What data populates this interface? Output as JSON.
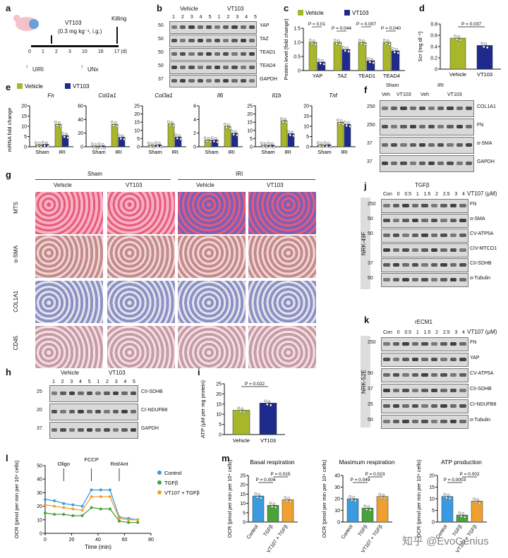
{
  "panels": {
    "a": {
      "label": "a",
      "drug": "VT103",
      "dose": "(0.3 mg kg⁻¹, i.g.)",
      "killing": "Killing",
      "days": [
        "0",
        "1",
        "2",
        "3",
        "10",
        "16",
        "17 (d)"
      ],
      "uiri": "UIRI",
      "unx": "UNx"
    },
    "b": {
      "label": "b",
      "vehicle": "Vehicle",
      "vt103": "VT103",
      "lanes": [
        "1",
        "2",
        "3",
        "4",
        "5",
        "1",
        "2",
        "3",
        "4",
        "5"
      ],
      "mw": [
        "50",
        "50",
        "50",
        "50",
        "37"
      ],
      "proteins": [
        "YAP",
        "TAZ",
        "TEAD1",
        "TEAD4",
        "GAPDH"
      ]
    },
    "c": {
      "label": "c",
      "legend": [
        "Vehicle",
        "VT103"
      ],
      "ylabel": "Protein level (fold change)",
      "pvals": [
        "P = 0.01",
        "P = 0.044",
        "P = 0.007",
        "P = 0.040"
      ]
    },
    "d": {
      "label": "d",
      "ylabel": "Scr (mg dl⁻¹)",
      "pval": "P = 0.037"
    },
    "e": {
      "label": "e",
      "legend": [
        "Vehicle",
        "VT103"
      ],
      "ylabel": "mRNA fold change",
      "genes": [
        "Fn",
        "Col1a1",
        "Col3a1",
        "Il6",
        "Il1b",
        "Tnf"
      ],
      "xcats": [
        "Sham",
        "IRI"
      ]
    },
    "f": {
      "label": "f",
      "sham": "Sham",
      "iri": "IRI",
      "veh": "Veh",
      "vt103": "VT103",
      "mw": [
        "250",
        "250",
        "37",
        "37"
      ],
      "proteins": [
        "COL1A1",
        "FN",
        "α-SMA",
        "GAPDH"
      ]
    },
    "g": {
      "label": "g",
      "sham": "Sham",
      "iri": "IRI",
      "cols": [
        "Vehicle",
        "VT103",
        "Vehicle",
        "VT103"
      ],
      "rows": [
        "MTS",
        "α-SMA",
        "COL1A1",
        "CD45"
      ]
    },
    "h": {
      "label": "h",
      "vehicle": "Vehicle",
      "vt103": "VT103",
      "lanes": [
        "1",
        "2",
        "3",
        "4",
        "5",
        "1",
        "2",
        "3",
        "4",
        "5"
      ],
      "mw": [
        "25",
        "20",
        "37"
      ],
      "proteins": [
        "CII-SDHB",
        "CI-NDUFB8",
        "GAPDH"
      ]
    },
    "i": {
      "label": "i",
      "ylabel": "ATP (μM per mg protein)",
      "pval": "P = 0.022",
      "cats": [
        "Vehicle",
        "VT103"
      ]
    },
    "j": {
      "label": "j",
      "cell": "NRK-49F",
      "treat": "TGFβ",
      "drug": "VT107 (μM)",
      "conc": [
        "Con",
        "0",
        "0.5",
        "1",
        "1.5",
        "2",
        "2.5",
        "3",
        "4"
      ],
      "mw": [
        "250",
        "50",
        "50",
        "37",
        "50"
      ],
      "proteins": [
        "FN",
        "α-SMA",
        "CV-ATP5A",
        "CIV-MTCO1",
        "CII-SDHB",
        "α-Tubulin"
      ]
    },
    "k": {
      "label": "k",
      "cell": "NRK-52E",
      "treat": "rECM1",
      "drug": "VT107 (μM)",
      "conc": [
        "Con",
        "0",
        "0.5",
        "1",
        "1.5",
        "2",
        "2.5",
        "3",
        "4"
      ],
      "mw": [
        "250",
        "50",
        "37",
        "25",
        "50"
      ],
      "proteins": [
        "FN",
        "YAP",
        "CV-ATP5A",
        "CII-SDHB",
        "CI-NDUFB8",
        "α-Tubulin"
      ]
    },
    "l": {
      "label": "l",
      "ylabel": "OCR (pmol per min per 10⁴ cells)",
      "xlabel": "Time (min)",
      "injections": [
        "Oligo",
        "FCCP",
        "Rot/Ant"
      ],
      "legend": [
        "Control",
        "TGFβ",
        "VT107 + TGFβ"
      ]
    },
    "m": {
      "label": "m",
      "titles": [
        "Basal respiration",
        "Maximum respiration",
        "ATP production"
      ],
      "ylabel": "OCR (pmol per min per 10⁴ cells)",
      "cats": [
        "Control",
        "TGFβ",
        "VT107 + TGFβ"
      ],
      "pvals": [
        [
          "P = 0.004",
          "P = 0.015"
        ],
        [
          "P = 0.049",
          "P = 0.023"
        ],
        [
          "P = 0.0003",
          "P = 0.002"
        ]
      ]
    }
  },
  "watermark": "知乎 @EvoGenius",
  "colors": {
    "vehicle": "#a8b62a",
    "vt103": "#1e2a8c",
    "control": "#3a9be0",
    "tgfb": "#4aa33a",
    "vt107": "#f0a030",
    "atp": "#e8b420"
  },
  "chart_data": [
    {
      "type": "bar",
      "panel": "c",
      "categories": [
        "YAP",
        "TAZ",
        "TEAD1",
        "TEAD4"
      ],
      "series": [
        {
          "name": "Vehicle",
          "values": [
            1.0,
            1.0,
            1.0,
            1.0
          ]
        },
        {
          "name": "VT103",
          "values": [
            0.3,
            0.75,
            0.35,
            0.7
          ]
        }
      ],
      "ylabel": "Protein level (fold change)",
      "ylim": [
        0,
        1.5
      ],
      "yticks": [
        "0",
        "0.5",
        "1.0",
        "1.5"
      ]
    },
    {
      "type": "bar",
      "panel": "d",
      "categories": [
        "Vehicle",
        "VT103"
      ],
      "values": [
        0.55,
        0.42
      ],
      "ylabel": "Scr (mg dl⁻¹)",
      "ylim": [
        0,
        0.8
      ],
      "yticks": [
        "0",
        "0.2",
        "0.4",
        "0.6",
        "0.8"
      ]
    },
    {
      "type": "bar",
      "panel": "e",
      "title": "Fn",
      "categories": [
        "Sham",
        "IRI"
      ],
      "series": [
        {
          "name": "Vehicle",
          "values": [
            1,
            11
          ]
        },
        {
          "name": "VT103",
          "values": [
            1.2,
            5.5
          ]
        }
      ],
      "ylim": [
        0,
        20
      ],
      "yticks": [
        "0",
        "5",
        "10",
        "15",
        "20"
      ]
    },
    {
      "type": "bar",
      "panel": "e",
      "title": "Col1a1",
      "categories": [
        "Sham",
        "IRI"
      ],
      "series": [
        {
          "name": "Vehicle",
          "values": [
            1,
            33
          ]
        },
        {
          "name": "VT103",
          "values": [
            1.2,
            14
          ]
        }
      ],
      "ylim": [
        0,
        60
      ],
      "yticks": [
        "0",
        "20",
        "40",
        "60"
      ]
    },
    {
      "type": "bar",
      "panel": "e",
      "title": "Col3a1",
      "categories": [
        "Sham",
        "IRI"
      ],
      "series": [
        {
          "name": "Vehicle",
          "values": [
            1,
            14
          ]
        },
        {
          "name": "VT103",
          "values": [
            1.2,
            6
          ]
        }
      ],
      "ylim": [
        0,
        25
      ],
      "yticks": [
        "0",
        "5",
        "10",
        "15",
        "20",
        "25"
      ]
    },
    {
      "type": "bar",
      "panel": "e",
      "title": "Il6",
      "categories": [
        "Sham",
        "IRI"
      ],
      "series": [
        {
          "name": "Vehicle",
          "values": [
            1,
            3
          ]
        },
        {
          "name": "VT103",
          "values": [
            1,
            2
          ]
        }
      ],
      "ylim": [
        0,
        6
      ],
      "yticks": [
        "0",
        "2",
        "4",
        "6"
      ]
    },
    {
      "type": "bar",
      "panel": "e",
      "title": "Il1b",
      "categories": [
        "Sham",
        "IRI"
      ],
      "series": [
        {
          "name": "Vehicle",
          "values": [
            1,
            16
          ]
        },
        {
          "name": "VT103",
          "values": [
            1,
            8
          ]
        }
      ],
      "ylim": [
        0,
        25
      ],
      "yticks": [
        "0",
        "5",
        "10",
        "15",
        "20",
        "25"
      ]
    },
    {
      "type": "bar",
      "panel": "e",
      "title": "Tnf",
      "categories": [
        "Sham",
        "IRI"
      ],
      "series": [
        {
          "name": "Vehicle",
          "values": [
            1,
            12
          ]
        },
        {
          "name": "VT103",
          "values": [
            1,
            11
          ]
        }
      ],
      "ylim": [
        0,
        20
      ],
      "yticks": [
        "0",
        "5",
        "10",
        "15",
        "20"
      ]
    },
    {
      "type": "bar",
      "panel": "i",
      "categories": [
        "Vehicle",
        "VT103"
      ],
      "values": [
        12,
        15.5
      ],
      "ylabel": "ATP (μM per mg protein)",
      "ylim": [
        0,
        25
      ],
      "yticks": [
        "0",
        "5",
        "10",
        "15",
        "20",
        "25"
      ]
    },
    {
      "type": "line",
      "panel": "l",
      "x": [
        0,
        7,
        14,
        21,
        28,
        35,
        42,
        49,
        56,
        63,
        70
      ],
      "series": [
        {
          "name": "Control",
          "values": [
            25,
            24,
            22,
            21,
            20,
            32,
            32,
            32,
            12,
            11,
            10
          ]
        },
        {
          "name": "TGFβ",
          "values": [
            15,
            14,
            14,
            13,
            13,
            19,
            18,
            18,
            9,
            8,
            8
          ]
        },
        {
          "name": "VT107 + TGFβ",
          "values": [
            21,
            20,
            19,
            18,
            17,
            27,
            27,
            27,
            11,
            10,
            10
          ]
        }
      ],
      "xlabel": "Time (min)",
      "ylim": [
        0,
        50
      ],
      "xlim": [
        0,
        80
      ],
      "yticks": [
        "0",
        "10",
        "20",
        "30",
        "40",
        "50"
      ],
      "xticks": [
        "0",
        "20",
        "40",
        "60",
        "80"
      ]
    },
    {
      "type": "bar",
      "panel": "m",
      "title": "Basal respiration",
      "categories": [
        "Control",
        "TGFβ",
        "VT107 + TGFβ"
      ],
      "values": [
        14,
        9,
        12
      ],
      "ylim": [
        0,
        25
      ],
      "yticks": [
        "0",
        "5",
        "10",
        "15",
        "20",
        "25"
      ]
    },
    {
      "type": "bar",
      "panel": "m",
      "title": "Maximum respiration",
      "categories": [
        "Control",
        "TGFβ",
        "VT107 + TGFβ"
      ],
      "values": [
        20,
        12,
        22
      ],
      "ylim": [
        0,
        40
      ],
      "yticks": [
        "0",
        "10",
        "20",
        "30",
        "40"
      ]
    },
    {
      "type": "bar",
      "panel": "m",
      "title": "ATP production",
      "categories": [
        "Control",
        "TGFβ",
        "VT107 + TGFβ"
      ],
      "values": [
        11,
        3,
        9
      ],
      "ylim": [
        0,
        20
      ],
      "yticks": [
        "0",
        "5",
        "10",
        "15",
        "20"
      ]
    }
  ]
}
